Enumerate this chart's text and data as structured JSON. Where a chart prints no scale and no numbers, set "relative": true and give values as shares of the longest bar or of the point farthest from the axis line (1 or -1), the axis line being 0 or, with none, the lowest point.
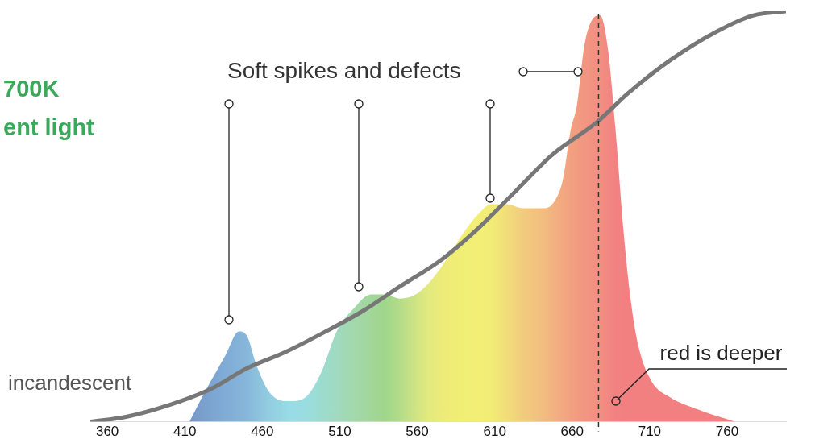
{
  "chart_data": {
    "type": "area",
    "title": "700K\nent light",
    "relative": true,
    "xlim": [
      349,
      798
    ],
    "xticks": [
      360,
      410,
      460,
      510,
      560,
      610,
      660,
      710,
      760
    ],
    "grid": false,
    "legend": false,
    "series": [
      {
        "x": [
          413,
          424,
          436,
          445,
          450,
          456,
          465,
          478,
          488,
          498,
          508,
          520,
          530,
          539,
          549,
          559,
          568,
          578,
          588,
          598,
          608,
          618,
          628,
          642,
          649,
          654,
          659,
          663,
          668,
          673,
          678,
          683,
          688,
          693,
          698,
          703,
          711,
          723,
          741,
          765
        ],
        "values": [
          0,
          0.08,
          0.16,
          0.22,
          0.21,
          0.14,
          0.07,
          0.05,
          0.06,
          0.12,
          0.22,
          0.28,
          0.31,
          0.31,
          0.3,
          0.31,
          0.34,
          0.39,
          0.45,
          0.5,
          0.53,
          0.53,
          0.52,
          0.52,
          0.54,
          0.59,
          0.71,
          0.77,
          0.92,
          0.98,
          0.99,
          0.91,
          0.71,
          0.47,
          0.29,
          0.18,
          0.1,
          0.06,
          0.03,
          0
        ],
        "colors": [
          "#7896c8",
          "#7ba2cf",
          "#80acd6",
          "#84b2d8",
          "#87b6da",
          "#8cc0dc",
          "#92cee0",
          "#98dce6",
          "#99dde0",
          "#9cdccf",
          "#a0dac0",
          "#a2d8aa",
          "#a2d69a",
          "#9fd68b",
          "#b4dc88",
          "#cfe484",
          "#e4ea7e",
          "#eeec78",
          "#f1ee76",
          "#f2ee76",
          "#f2ec76",
          "#f2dc7a",
          "#f2cc7e",
          "#f2bc80",
          "#f2b080",
          "#f2a880",
          "#f2a080",
          "#f29c80",
          "#f29682",
          "#f29282",
          "#f28e82",
          "#f28882",
          "#f28282",
          "#f28080",
          "#f28080",
          "#f28080",
          "#f28080",
          "#f28080",
          "#f28080",
          "#f28080"
        ]
      },
      {
        "type": "line",
        "name": "incandescent",
        "color": "#777777",
        "x": [
          349,
          372,
          401,
          427,
          450,
          475,
          501,
          525,
          549,
          574,
          599,
          623,
          647,
          676,
          696,
          723,
          753,
          777,
          798
        ],
        "values": [
          0,
          0.012,
          0.042,
          0.08,
          0.13,
          0.17,
          0.22,
          0.27,
          0.33,
          0.39,
          0.47,
          0.56,
          0.65,
          0.73,
          0.8,
          0.88,
          0.95,
          0.99,
          1
        ]
      }
    ],
    "ref_lines": [
      {
        "axis": "x",
        "value": 677,
        "color": "#333333",
        "line_style": "dashed"
      }
    ],
    "annotations": [
      "Soft spikes and defects",
      {
        "text": "red is deeper",
        "x": 688,
        "y": 0.05
      }
    ]
  }
}
